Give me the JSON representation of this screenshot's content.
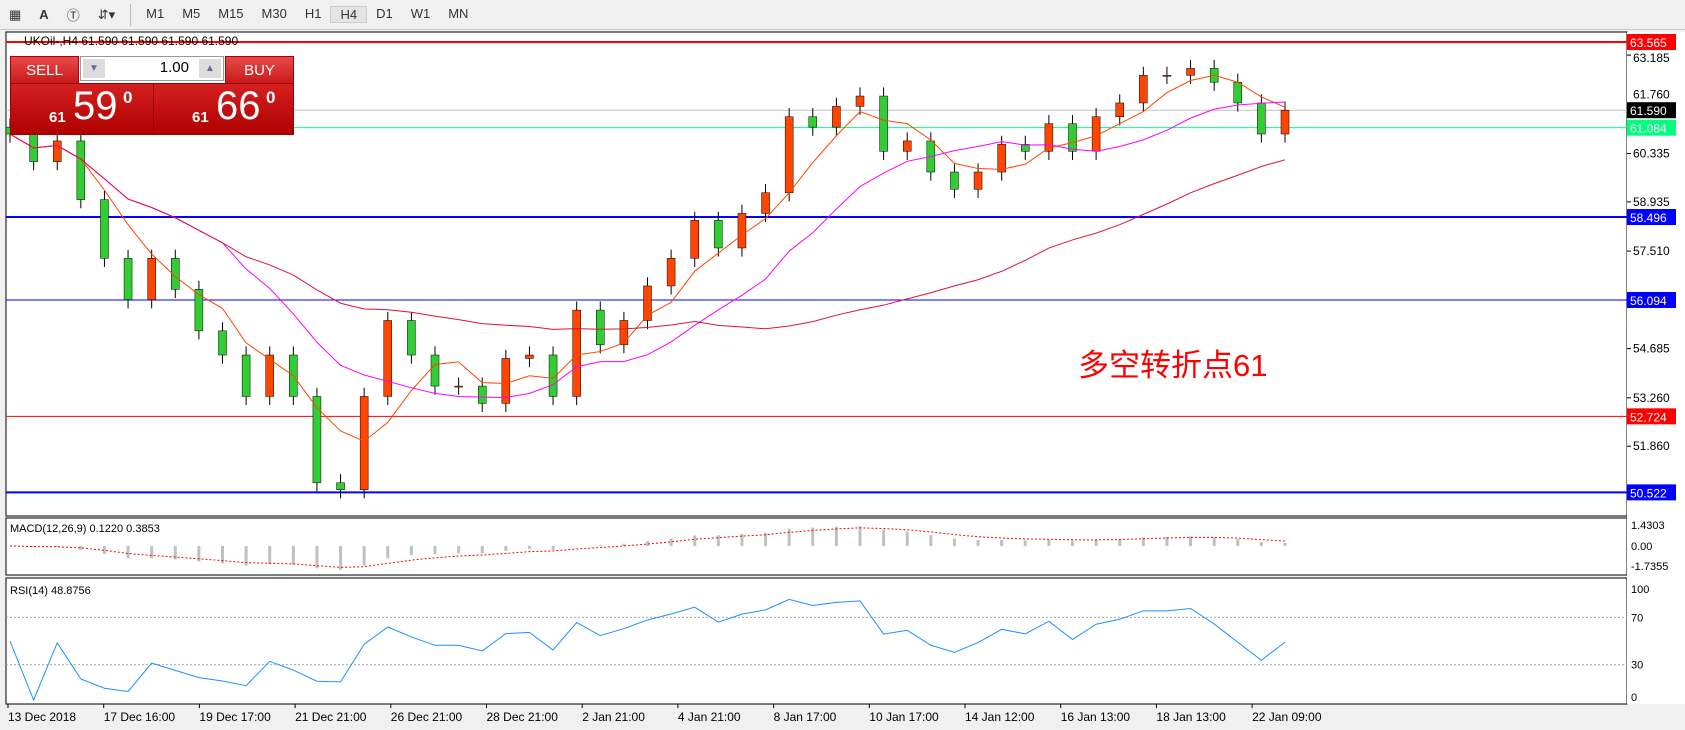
{
  "toolbar": {
    "timeframes": [
      "M1",
      "M5",
      "M15",
      "M30",
      "H1",
      "H4",
      "D1",
      "W1",
      "MN"
    ],
    "active": "H4"
  },
  "header": {
    "symbol_line": "UKOil-,H4  61.590 61.590 61.590 61.590"
  },
  "trade_panel": {
    "sell_label": "SELL",
    "buy_label": "BUY",
    "lot": "1.00",
    "sell_big": "61",
    "sell_main": "59",
    "sell_sup": "0",
    "buy_big": "61",
    "buy_main": "66",
    "buy_sup": "0"
  },
  "annotation": "多空转折点61",
  "chart_data": {
    "type": "candlestick",
    "symbol": "UKOil-",
    "timeframe": "H4",
    "ylim": [
      50.0,
      63.9
    ],
    "y_ticks": [
      "63.185",
      "61.760",
      "60.335",
      "58.935",
      "57.510",
      "54.685",
      "53.260",
      "51.860"
    ],
    "x_ticks": [
      "13 Dec 2018",
      "17 Dec 16:00",
      "19 Dec 17:00",
      "21 Dec 21:00",
      "26 Dec 21:00",
      "28 Dec 21:00",
      "2 Jan 21:00",
      "4 Jan 21:00",
      "8 Jan 17:00",
      "10 Jan 17:00",
      "14 Jan 12:00",
      "16 Jan 13:00",
      "18 Jan 13:00",
      "22 Jan 09:00"
    ],
    "closes": [
      60.9,
      60.1,
      60.7,
      59.0,
      57.3,
      56.1,
      57.3,
      56.4,
      55.2,
      54.5,
      53.3,
      54.5,
      53.3,
      50.8,
      50.6,
      53.3,
      55.5,
      54.5,
      53.6,
      53.6,
      53.1,
      54.4,
      54.5,
      53.3,
      55.8,
      54.8,
      55.5,
      56.5,
      57.3,
      58.4,
      57.6,
      58.6,
      59.2,
      61.4,
      61.1,
      61.7,
      62.0,
      60.4,
      60.7,
      59.8,
      59.3,
      59.8,
      60.6,
      60.4,
      61.2,
      60.4,
      61.4,
      61.8,
      62.6,
      62.6,
      62.8,
      62.4,
      61.8,
      60.9,
      61.59
    ],
    "levels": [
      {
        "value": "63.565",
        "color": "#ff0000"
      },
      {
        "value": "61.590",
        "color": "#000000"
      },
      {
        "value": "61.084",
        "color": "#00ff7f"
      },
      {
        "value": "58.496",
        "color": "#0000ff"
      },
      {
        "value": "56.094",
        "color": "#0000ff"
      },
      {
        "value": "52.724",
        "color": "#ff0000"
      },
      {
        "value": "50.522",
        "color": "#0000ff"
      }
    ],
    "colors": {
      "bull": "#ff4500",
      "bear": "#32cd32",
      "ma_fast": "#ff4500",
      "ma_mid": "#ff00ff",
      "ma_slow": "#dc143c"
    },
    "macd": {
      "label": "MACD(12,26,9) 0.1220 0.3853",
      "ticks": [
        "1.4303",
        "0.00",
        "-1.7355"
      ]
    },
    "rsi": {
      "label": "RSI(14) 48.8756",
      "ticks": [
        "100",
        "70",
        "30",
        "0"
      ]
    }
  }
}
